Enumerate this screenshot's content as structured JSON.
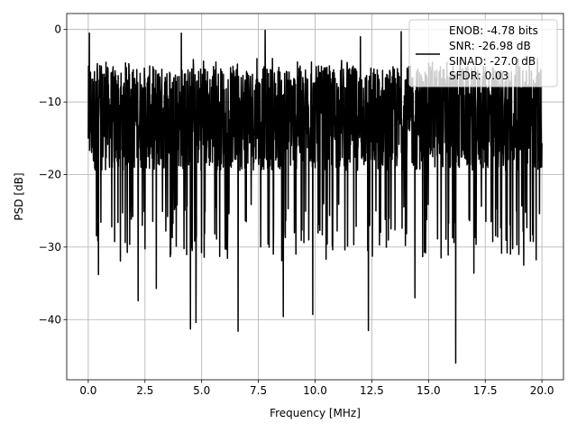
{
  "chart_data": {
    "type": "line",
    "title": "",
    "xlabel": "Frequency [MHz]",
    "ylabel": "PSD [dB]",
    "xlim": [
      -0.95,
      20.95
    ],
    "ylim": [
      -48.3,
      2.2
    ],
    "xticks": [
      0.0,
      2.5,
      5.0,
      7.5,
      10.0,
      12.5,
      15.0,
      17.5,
      20.0
    ],
    "xtick_labels": [
      "0.0",
      "2.5",
      "5.0",
      "7.5",
      "10.0",
      "12.5",
      "15.0",
      "17.5",
      "20.0"
    ],
    "yticks": [
      0,
      -10,
      -20,
      -30,
      -40
    ],
    "ytick_labels": [
      "0",
      "−10",
      "−20",
      "−30",
      "−40"
    ],
    "grid": true,
    "legend_position": "upper-right",
    "line_color": "#000000",
    "series": [
      {
        "name": "",
        "x_start": 0.0,
        "x_end": 20.0,
        "approx_points": 2048,
        "y_typical_range": [
          -22,
          -5
        ],
        "notable_peaks": [
          {
            "x": 0.05,
            "y": -0.5
          },
          {
            "x": 0.4,
            "y": -4.7
          },
          {
            "x": 4.1,
            "y": -0.5
          },
          {
            "x": 7.8,
            "y": -0.1
          },
          {
            "x": 12.0,
            "y": -1.0
          },
          {
            "x": 13.8,
            "y": -0.3
          },
          {
            "x": 19.8,
            "y": -4.0
          }
        ],
        "notable_dips": [
          {
            "x": 0.45,
            "y": -33.8
          },
          {
            "x": 2.2,
            "y": -37.4
          },
          {
            "x": 3.0,
            "y": -35.7
          },
          {
            "x": 4.5,
            "y": -41.3
          },
          {
            "x": 4.75,
            "y": -40.4
          },
          {
            "x": 6.6,
            "y": -41.6
          },
          {
            "x": 8.6,
            "y": -39.6
          },
          {
            "x": 9.9,
            "y": -39.3
          },
          {
            "x": 12.35,
            "y": -41.5
          },
          {
            "x": 14.4,
            "y": -37.0
          },
          {
            "x": 16.2,
            "y": -46.0
          },
          {
            "x": 17.0,
            "y": -33.6
          },
          {
            "x": 19.2,
            "y": -32.5
          }
        ]
      }
    ],
    "legend_lines": [
      "ENOB: -4.78 bits",
      "SNR: -26.98 dB",
      "SINAD: -27.0 dB",
      "SFDR: 0.03"
    ]
  }
}
